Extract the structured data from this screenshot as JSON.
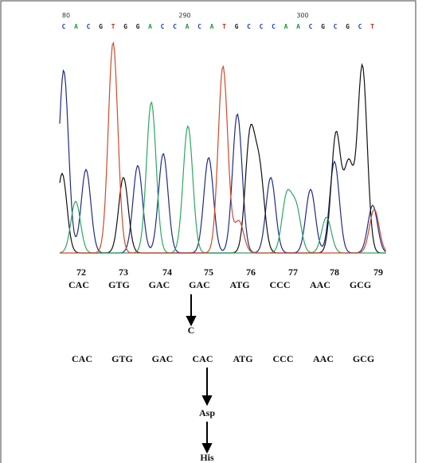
{
  "ruler": {
    "labels": [
      "80",
      "290",
      "300"
    ],
    "bases": [
      "C",
      "A",
      "C",
      "G",
      "T",
      "G",
      "G",
      "A",
      "C",
      "C",
      "A",
      "C",
      "A",
      "T",
      "G",
      "C",
      "C",
      "C",
      "A",
      "A",
      "C",
      "G",
      "C",
      "G",
      "C",
      "T"
    ]
  },
  "codon_numbers": [
    "72",
    "73",
    "74",
    "75",
    "76",
    "77",
    "78",
    "79"
  ],
  "original_codons": [
    "CAC",
    "GTG",
    "GAC",
    "GAC",
    "ATG",
    "CCC",
    "AAC",
    "GCG"
  ],
  "mutation": "C",
  "mutant_codons": [
    "CAC",
    "GTG",
    "GAC",
    "CAC",
    "ATG",
    "CCC",
    "AAC",
    "GCG"
  ],
  "original_amino_acid": "Asp",
  "mutant_amino_acid": "His"
}
